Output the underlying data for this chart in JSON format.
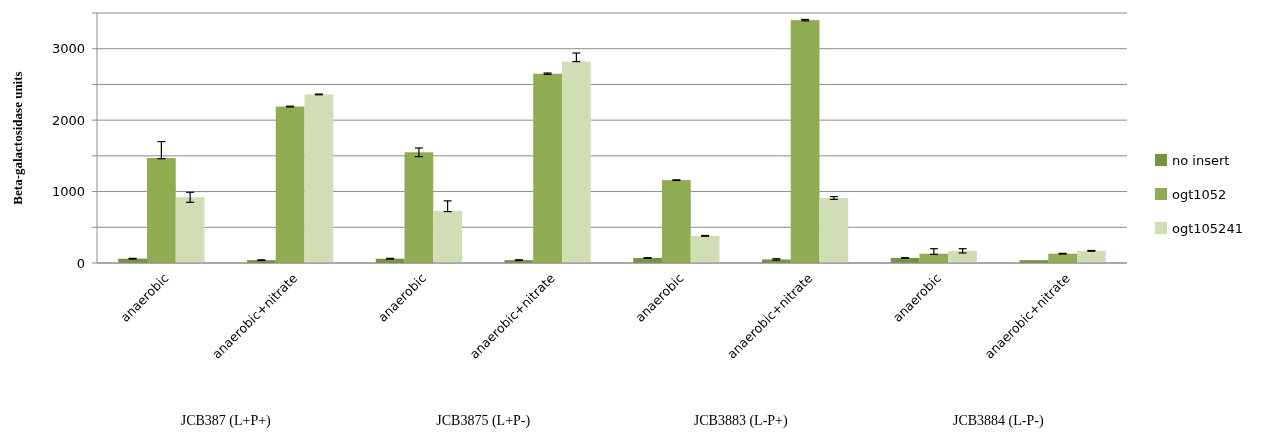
{
  "chart_data": {
    "type": "bar",
    "ylabel": "Beta-galactosidase units",
    "categories": [
      "anaerobic",
      "anaerobic+nitrate",
      "anaerobic",
      "anaerobic+nitrate",
      "anaerobic",
      "anaerobic+nitrate",
      "anaerobic",
      "anaerobic+nitrate"
    ],
    "series": [
      {
        "name": "no insert",
        "color": "#77933c",
        "values": [
          60,
          40,
          60,
          40,
          70,
          50,
          70,
          40
        ],
        "errors": [
          5,
          5,
          5,
          5,
          5,
          10,
          5,
          null
        ]
      },
      {
        "name": "ogt1052",
        "color": "#8fad50",
        "values": [
          1470,
          2190,
          1550,
          2650,
          1160,
          3400,
          130,
          130
        ],
        "errors": [
          [
            1460,
            1700
          ],
          5,
          60,
          10,
          5,
          10,
          [
            120,
            200
          ],
          5
        ]
      },
      {
        "name": "ogt105241",
        "color": "#d0ddb5",
        "values": [
          920,
          2360,
          730,
          2820,
          380,
          910,
          170,
          170
        ],
        "errors": [
          70,
          5,
          [
            720,
            870
          ],
          [
            2820,
            2940
          ],
          5,
          20,
          30,
          5
        ]
      }
    ],
    "annotations": [
      "JCB387 (L+P+)",
      "JCB3875 (L+P-)",
      "JCB3883 (L-P+)",
      "JCB3884 (L-P-)"
    ],
    "ylim": [
      0,
      3500
    ],
    "yticks": [
      0,
      {
        "value": 500,
        "label": null
      },
      1000,
      {
        "value": 1500,
        "label": null
      },
      2000,
      {
        "value": 2500,
        "label": null
      },
      3000,
      {
        "value": 3500,
        "label": null
      }
    ],
    "grid": "y",
    "legend": "right"
  }
}
